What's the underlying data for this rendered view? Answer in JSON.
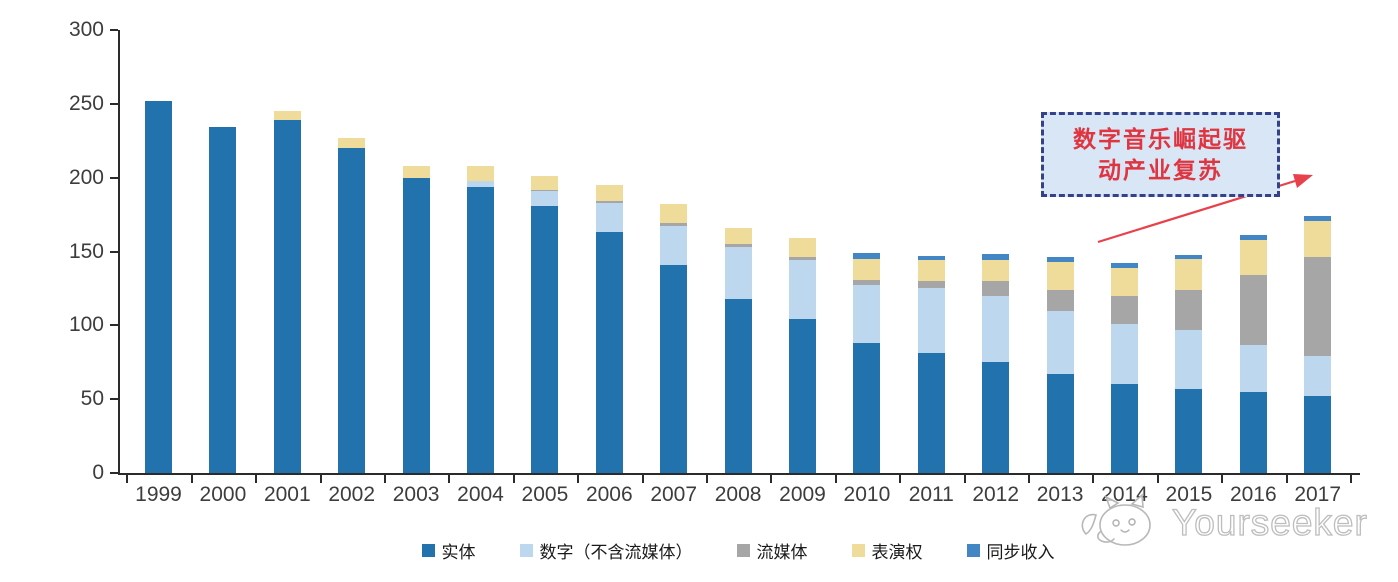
{
  "chart_data": {
    "type": "bar",
    "stacked": true,
    "title": "",
    "xlabel": "",
    "ylabel": "",
    "x": [
      "1999",
      "2000",
      "2001",
      "2002",
      "2003",
      "2004",
      "2005",
      "2006",
      "2007",
      "2008",
      "2009",
      "2010",
      "2011",
      "2012",
      "2013",
      "2014",
      "2015",
      "2016",
      "2017"
    ],
    "series": [
      {
        "key": "physical",
        "name": "实体",
        "color": "#2272AE",
        "values": [
          252,
          234,
          239,
          220,
          200,
          194,
          181,
          163,
          141,
          118,
          104,
          88,
          81,
          75,
          67,
          60,
          57,
          55,
          52
        ]
      },
      {
        "key": "digital-excl-streaming",
        "name": "数字（不含流媒体）",
        "color": "#BDD7EE",
        "values": [
          0,
          0,
          0,
          0,
          0,
          4,
          10,
          20,
          26,
          35,
          40,
          39,
          44,
          45,
          43,
          41,
          40,
          32,
          27
        ]
      },
      {
        "key": "streaming",
        "name": "流媒体",
        "color": "#A6A6A6",
        "values": [
          0,
          0,
          0,
          0,
          0,
          0,
          1,
          1,
          2,
          2,
          2,
          4,
          5,
          10,
          14,
          19,
          27,
          47,
          67
        ]
      },
      {
        "key": "performance-rights",
        "name": "表演权",
        "color": "#EFDC9B",
        "values": [
          0,
          0,
          6,
          7,
          8,
          10,
          9,
          11,
          13,
          11,
          13,
          14,
          14,
          14,
          19,
          19,
          21,
          24,
          25
        ]
      },
      {
        "key": "sync",
        "name": "同步收入",
        "color": "#4286C6",
        "values": [
          0,
          0,
          0,
          0,
          0,
          0,
          0,
          0,
          0,
          0,
          0,
          4,
          3,
          4,
          3,
          3,
          3,
          3,
          3
        ]
      }
    ],
    "ylim": [
      0,
      300
    ],
    "yticks": [
      0,
      50,
      100,
      150,
      200,
      250,
      300
    ],
    "grid": false,
    "legend_position": "bottom"
  },
  "annotation": {
    "line1": "数字音乐崛起驱",
    "line2": "动产业复苏",
    "text_color": "#DE3540",
    "box_fill": "#D9E6F5",
    "border_color": "#34428C",
    "arrow_color": "#E8414B"
  },
  "watermark": {
    "text": "Yourseeker"
  },
  "axis": {
    "line_color": "#2b2b2b",
    "label_color": "#3d3d3d"
  }
}
